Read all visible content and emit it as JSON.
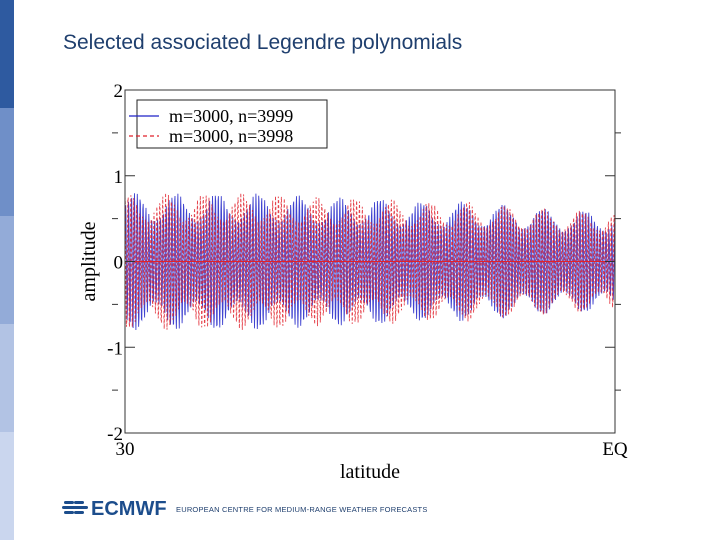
{
  "slide": {
    "title": "Selected associated Legendre polynomials",
    "footer_org": "EUROPEAN CENTRE FOR MEDIUM-RANGE WEATHER FORECASTS",
    "logo_text": "ECMWF",
    "colors": {
      "title": "#1f3f6e",
      "side_bar": [
        "#2e5aa0",
        "#6f8fc8",
        "#93abd8",
        "#b2c3e4",
        "#cad6ee"
      ],
      "logo": "#1c4d8c"
    }
  },
  "chart_data": {
    "type": "line",
    "title": "",
    "xlabel": "latitude",
    "ylabel": "amplitude",
    "xlim": [
      30,
      0
    ],
    "ylim": [
      -2,
      2
    ],
    "x_tick_labels": [
      "30",
      "EQ"
    ],
    "y_ticks": [
      2,
      1,
      0,
      -1,
      -2
    ],
    "y_tick_labels": [
      "2",
      "1",
      "0",
      "-1",
      "-2"
    ],
    "legend_position": "top-left",
    "grid": false,
    "series": [
      {
        "name": "m=3000, n=3999",
        "style": "solid",
        "color": "#1f22c8",
        "envelope_x": [
          30,
          27,
          24,
          21,
          18,
          15,
          12,
          9,
          6,
          3,
          0
        ],
        "envelope_amplitude": [
          0.8,
          0.8,
          0.8,
          0.8,
          0.75,
          0.75,
          0.7,
          0.7,
          0.65,
          0.6,
          0.6
        ]
      },
      {
        "name": "m=3000, n=3998",
        "style": "dashed",
        "color": "#e0202a",
        "envelope_x": [
          30,
          27,
          24,
          21,
          18,
          15,
          12,
          9,
          6,
          3,
          0
        ],
        "envelope_amplitude": [
          0.8,
          0.8,
          0.8,
          0.8,
          0.75,
          0.75,
          0.7,
          0.7,
          0.65,
          0.6,
          0.6
        ]
      }
    ]
  }
}
